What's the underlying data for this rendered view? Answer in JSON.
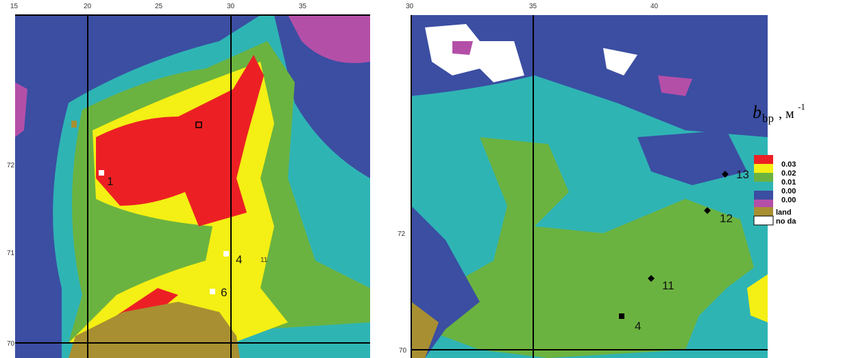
{
  "left_map": {
    "top_labels": [
      "15",
      "20",
      "25",
      "30",
      "35"
    ],
    "side_labels": [
      "72",
      "71",
      "70"
    ],
    "stations": [
      "1",
      "4",
      "6",
      "11"
    ]
  },
  "right_map": {
    "top_labels": [
      "30",
      "35",
      "40"
    ],
    "side_labels": [
      "72",
      "70"
    ],
    "stations": [
      "13",
      "12",
      "11",
      "4"
    ]
  },
  "legend": {
    "symbol": "b",
    "subscript": "bp",
    "unit": ", м",
    "exponent": "-1",
    "items": [
      "0.03",
      "0.02",
      "0.01",
      "0.00",
      "0.00",
      "land",
      "no da"
    ]
  }
}
